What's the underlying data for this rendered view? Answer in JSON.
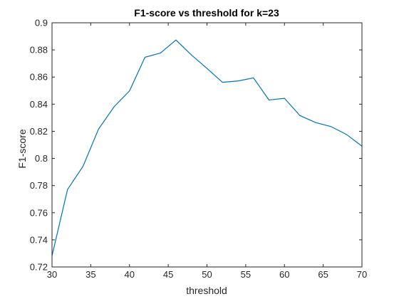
{
  "chart_data": {
    "type": "line",
    "title": "F1-score vs threshold for k=23",
    "xlabel": "threshold",
    "ylabel": "F1-score",
    "xlim": [
      30,
      70
    ],
    "ylim": [
      0.72,
      0.9
    ],
    "xticks": [
      "30",
      "35",
      "40",
      "45",
      "50",
      "55",
      "60",
      "65",
      "70"
    ],
    "yticks": [
      "0.72",
      "0.74",
      "0.76",
      "0.78",
      "0.8",
      "0.82",
      "0.84",
      "0.86",
      "0.88",
      "0.9"
    ],
    "grid": false,
    "line_color": "#0072BD",
    "series": [
      {
        "x": [
          30,
          32,
          34,
          36,
          38,
          40,
          42,
          44,
          46,
          48,
          50,
          52,
          54,
          56,
          58,
          60,
          62,
          64,
          66,
          68,
          70
        ],
        "y": [
          0.7282,
          0.7771,
          0.7942,
          0.8216,
          0.838,
          0.8498,
          0.8746,
          0.8777,
          0.8873,
          0.8762,
          0.8664,
          0.8561,
          0.8571,
          0.8594,
          0.8431,
          0.8443,
          0.8316,
          0.8265,
          0.8235,
          0.8177,
          0.809
        ]
      }
    ]
  }
}
